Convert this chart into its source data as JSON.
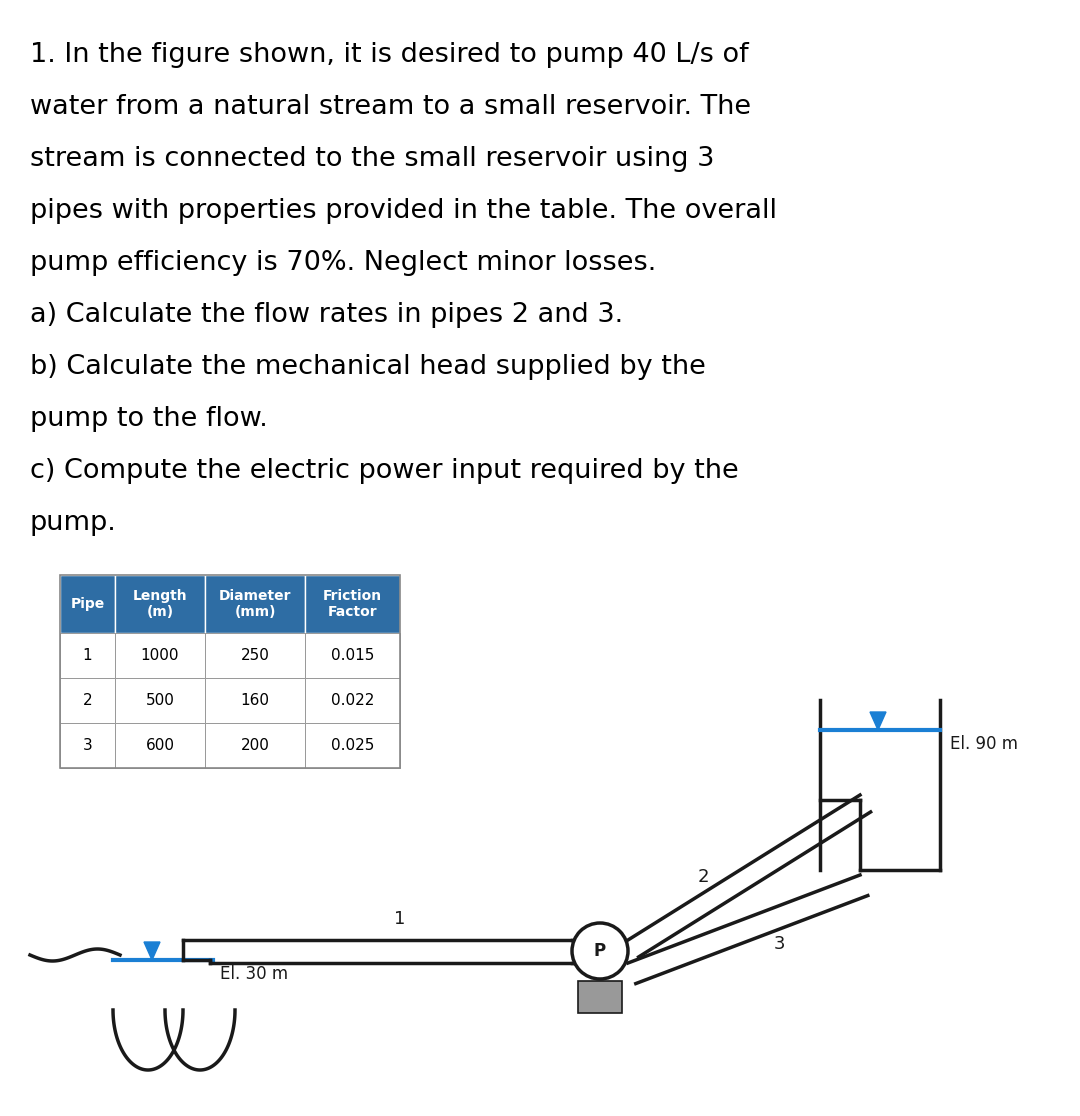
{
  "text_lines": [
    "1. In the figure shown, it is desired to pump 40 L/s of",
    "water from a natural stream to a small reservoir. The",
    "stream is connected to the small reservoir using 3",
    "pipes with properties provided in the table. The overall",
    "pump efficiency is 70%. Neglect minor losses.",
    "a) Calculate the flow rates in pipes 2 and 3.",
    "b) Calculate the mechanical head supplied by the",
    "pump to the flow.",
    "c) Compute the electric power input required by the",
    "pump."
  ],
  "table_headers": [
    "Pipe",
    "Length\n(m)",
    "Diameter\n(mm)",
    "Friction\nFactor"
  ],
  "table_data": [
    [
      "1",
      "1000",
      "250",
      "0.015"
    ],
    [
      "2",
      "500",
      "160",
      "0.022"
    ],
    [
      "3",
      "600",
      "200",
      "0.025"
    ]
  ],
  "header_bg": "#2E6DA4",
  "header_text_color": "#FFFFFF",
  "row_bg": "#FFFFFF",
  "table_text_color": "#000000",
  "bg_color": "#FFFFFF",
  "text_color": "#000000",
  "pipe_color": "#1a1a1a",
  "water_color": "#1a7fd4",
  "pump_fill": "#cccccc",
  "el30_label": "El. 30 m",
  "el90_label": "El. 90 m",
  "pipe1_label": "1",
  "pipe2_label": "2",
  "pipe3_label": "3",
  "pump_label": "P"
}
